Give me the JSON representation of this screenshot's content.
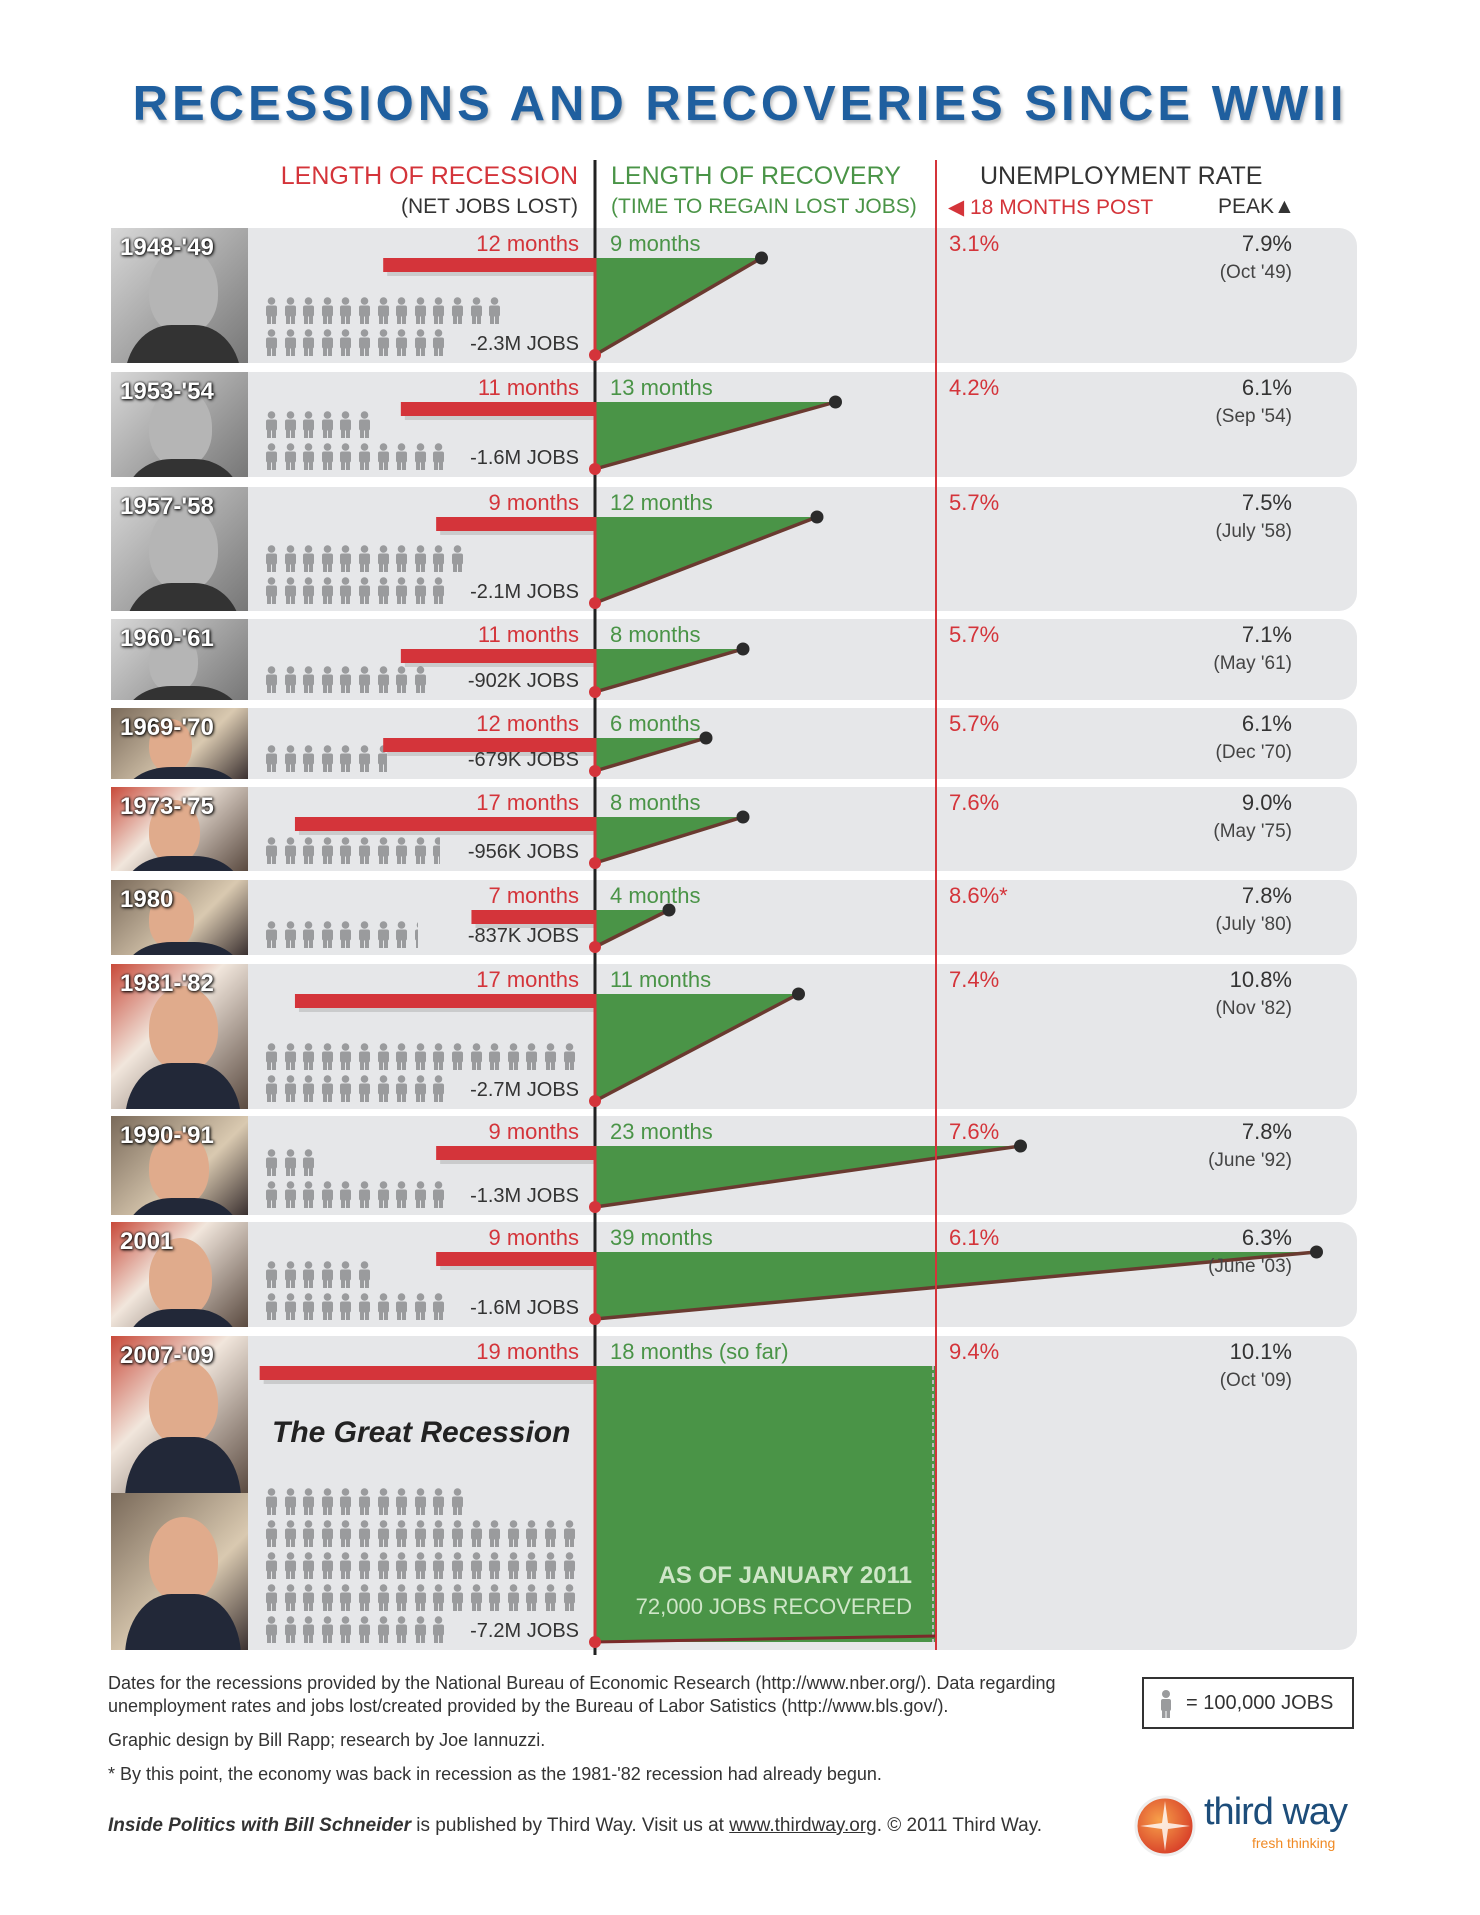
{
  "title": "RECESSIONS AND RECOVERIES SINCE WWII",
  "headers": {
    "recession": "LENGTH OF RECESSION",
    "recession_sub": "(NET JOBS LOST)",
    "recovery": "LENGTH OF RECOVERY",
    "recovery_sub": "(TIME TO REGAIN LOST JOBS)",
    "unemployment": "UNEMPLOYMENT RATE",
    "post": "18 MONTHS POST",
    "peak": "PEAK"
  },
  "colors": {
    "recession": "#d4343a",
    "recovery": "#4a9447",
    "title": "#1f5f9f",
    "row_bg": "#e6e7e9",
    "job_icon": "#9a9b9d"
  },
  "chart_data": {
    "type": "bar",
    "unit_icon_value": 100000,
    "rows": [
      {
        "period": "1948-'49",
        "recession_months": 12,
        "recession_label": "12 months",
        "recovery_months": 9,
        "recovery_label": "9 months",
        "jobs_lost_k": 2300,
        "jobs_label": "-2.3M JOBS",
        "unemp_18mo": "3.1%",
        "peak": "7.9%",
        "peak_date": "(Oct '49)",
        "photo": "bw"
      },
      {
        "period": "1953-'54",
        "recession_months": 11,
        "recession_label": "11 months",
        "recovery_months": 13,
        "recovery_label": "13 months",
        "jobs_lost_k": 1600,
        "jobs_label": "-1.6M JOBS",
        "unemp_18mo": "4.2%",
        "peak": "6.1%",
        "peak_date": "(Sep '54)",
        "photo": "bw"
      },
      {
        "period": "1957-'58",
        "recession_months": 9,
        "recession_label": "9 months",
        "recovery_months": 12,
        "recovery_label": "12 months",
        "jobs_lost_k": 2100,
        "jobs_label": "-2.1M JOBS",
        "unemp_18mo": "5.7%",
        "peak": "7.5%",
        "peak_date": "(July '58)",
        "photo": "bw"
      },
      {
        "period": "1960-'61",
        "recession_months": 11,
        "recession_label": "11 months",
        "recovery_months": 8,
        "recovery_label": "8 months",
        "jobs_lost_k": 902,
        "jobs_label": "-902K JOBS",
        "unemp_18mo": "5.7%",
        "peak": "7.1%",
        "peak_date": "(May '61)",
        "photo": "bw"
      },
      {
        "period": "1969-'70",
        "recession_months": 12,
        "recession_label": "12 months",
        "recovery_months": 6,
        "recovery_label": "6 months",
        "jobs_lost_k": 679,
        "jobs_label": "-679K JOBS",
        "unemp_18mo": "5.7%",
        "peak": "6.1%",
        "peak_date": "(Dec '70)",
        "photo": "color"
      },
      {
        "period": "1973-'75",
        "recession_months": 17,
        "recession_label": "17 months",
        "recovery_months": 8,
        "recovery_label": "8 months",
        "jobs_lost_k": 956,
        "jobs_label": "-956K JOBS",
        "unemp_18mo": "7.6%",
        "peak": "9.0%",
        "peak_date": "(May '75)",
        "photo": "color"
      },
      {
        "period": "1980",
        "recession_months": 7,
        "recession_label": "7 months",
        "recovery_months": 4,
        "recovery_label": "4 months",
        "jobs_lost_k": 837,
        "jobs_label": "-837K JOBS",
        "unemp_18mo": "8.6%*",
        "peak": "7.8%",
        "peak_date": "(July '80)",
        "photo": "color"
      },
      {
        "period": "1981-'82",
        "recession_months": 17,
        "recession_label": "17 months",
        "recovery_months": 11,
        "recovery_label": "11 months",
        "jobs_lost_k": 2700,
        "jobs_label": "-2.7M JOBS",
        "unemp_18mo": "7.4%",
        "peak": "10.8%",
        "peak_date": "(Nov '82)",
        "photo": "color"
      },
      {
        "period": "1990-'91",
        "recession_months": 9,
        "recession_label": "9 months",
        "recovery_months": 23,
        "recovery_label": "23 months",
        "jobs_lost_k": 1300,
        "jobs_label": "-1.3M JOBS",
        "unemp_18mo": "7.6%",
        "peak": "7.8%",
        "peak_date": "(June '92)",
        "photo": "color"
      },
      {
        "period": "2001",
        "recession_months": 9,
        "recession_label": "9 months",
        "recovery_months": 39,
        "recovery_label": "39 months",
        "jobs_lost_k": 1600,
        "jobs_label": "-1.6M JOBS",
        "unemp_18mo": "6.1%",
        "peak": "6.3%",
        "peak_date": "(June '03)",
        "photo": "color"
      },
      {
        "period": "2007-'09",
        "recession_months": 19,
        "recession_label": "19 months",
        "recovery_months": 18,
        "recovery_label": "18 months (so far)",
        "recovery_ongoing": true,
        "jobs_lost_k": 7200,
        "jobs_label": "-7.2M JOBS",
        "unemp_18mo": "9.4%",
        "peak": "10.1%",
        "peak_date": "(Oct '09)",
        "photo": "color2",
        "name": "The Great Recession",
        "note_title": "AS OF JANUARY 2011",
        "note_sub": "72,000 JOBS RECOVERED"
      }
    ]
  },
  "legend": {
    "text": "= 100,000 JOBS"
  },
  "footer": {
    "sources_1": "Dates for the recessions provided by the National Bureau of Economic Research (http://www.nber.org/). Data regarding",
    "sources_2": "unemployment rates and jobs lost/created provided  by the Bureau of Labor Satistics (http://www.bls.gov/).",
    "credits": "Graphic design by Bill Rapp; research by Joe Iannuzzi.",
    "footnote": "* By this point, the economy was back in recession as the 1981-'82 recession had already begun.",
    "publication": "Inside Politics with Bill Schneider",
    "published_by": " is published by Third Way. Visit us at ",
    "url": "www.thirdway.org",
    "copyright": ". © 2011 Third Way."
  },
  "logo": {
    "name": "third way",
    "tagline": "fresh thinking"
  }
}
